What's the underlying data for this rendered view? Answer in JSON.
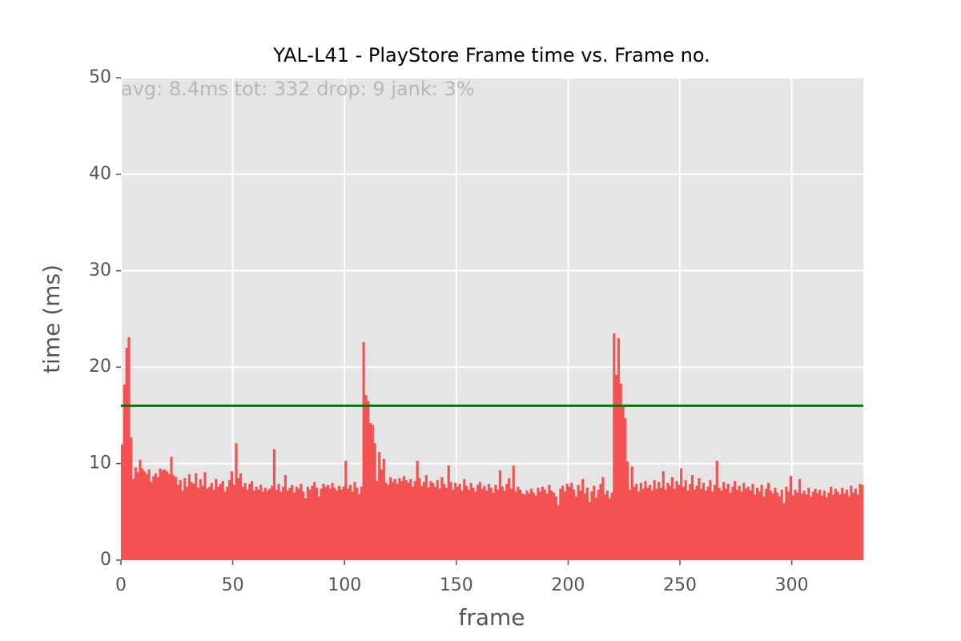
{
  "chart_data": {
    "type": "bar",
    "title": "YAL-L41 - PlayStore Frame time vs. Frame no.",
    "annotation": "avg: 8.4ms tot: 332 drop: 9 jank: 3%",
    "xlabel": "frame",
    "ylabel": "time (ms)",
    "color": "#f45252",
    "background": "#e5e5e5",
    "grid": true,
    "reference_line": {
      "value": 16,
      "color": "#007a00"
    },
    "xlim": [
      0,
      332
    ],
    "ylim": [
      0,
      50
    ],
    "xticks": [
      0,
      50,
      100,
      150,
      200,
      250,
      300
    ],
    "yticks": [
      0,
      10,
      20,
      30,
      40,
      50
    ],
    "x": [
      0,
      1,
      2,
      3,
      4,
      5,
      6,
      7,
      8,
      9,
      10,
      11,
      12,
      13,
      14,
      15,
      16,
      17,
      18,
      19,
      20,
      21,
      22,
      23,
      24,
      25,
      26,
      27,
      28,
      29,
      30,
      31,
      32,
      33,
      34,
      35,
      36,
      37,
      38,
      39,
      40,
      41,
      42,
      43,
      44,
      45,
      46,
      47,
      48,
      49,
      50,
      51,
      52,
      53,
      54,
      55,
      56,
      57,
      58,
      59,
      60,
      61,
      62,
      63,
      64,
      65,
      66,
      67,
      68,
      69,
      70,
      71,
      72,
      73,
      74,
      75,
      76,
      77,
      78,
      79,
      80,
      81,
      82,
      83,
      84,
      85,
      86,
      87,
      88,
      89,
      90,
      91,
      92,
      93,
      94,
      95,
      96,
      97,
      98,
      99,
      100,
      101,
      102,
      103,
      104,
      105,
      106,
      107,
      108,
      109,
      110,
      111,
      112,
      113,
      114,
      115,
      116,
      117,
      118,
      119,
      120,
      121,
      122,
      123,
      124,
      125,
      126,
      127,
      128,
      129,
      130,
      131,
      132,
      133,
      134,
      135,
      136,
      137,
      138,
      139,
      140,
      141,
      142,
      143,
      144,
      145,
      146,
      147,
      148,
      149,
      150,
      151,
      152,
      153,
      154,
      155,
      156,
      157,
      158,
      159,
      160,
      161,
      162,
      163,
      164,
      165,
      166,
      167,
      168,
      169,
      170,
      171,
      172,
      173,
      174,
      175,
      176,
      177,
      178,
      179,
      180,
      181,
      182,
      183,
      184,
      185,
      186,
      187,
      188,
      189,
      190,
      191,
      192,
      193,
      194,
      195,
      196,
      197,
      198,
      199,
      200,
      201,
      202,
      203,
      204,
      205,
      206,
      207,
      208,
      209,
      210,
      211,
      212,
      213,
      214,
      215,
      216,
      217,
      218,
      219,
      220,
      221,
      222,
      223,
      224,
      225,
      226,
      227,
      228,
      229,
      230,
      231,
      232,
      233,
      234,
      235,
      236,
      237,
      238,
      239,
      240,
      241,
      242,
      243,
      244,
      245,
      246,
      247,
      248,
      249,
      250,
      251,
      252,
      253,
      254,
      255,
      256,
      257,
      258,
      259,
      260,
      261,
      262,
      263,
      264,
      265,
      266,
      267,
      268,
      269,
      270,
      271,
      272,
      273,
      274,
      275,
      276,
      277,
      278,
      279,
      280,
      281,
      282,
      283,
      284,
      285,
      286,
      287,
      288,
      289,
      290,
      291,
      292,
      293,
      294,
      295,
      296,
      297,
      298,
      299,
      300,
      301,
      302,
      303,
      304,
      305,
      306,
      307,
      308,
      309,
      310,
      311,
      312,
      313,
      314,
      315,
      316,
      317,
      318,
      319,
      320,
      321,
      322,
      323,
      324,
      325,
      326,
      327,
      328,
      329,
      330,
      331
    ],
    "values": [
      12,
      18.2,
      22,
      23.1,
      12.7,
      8.4,
      9.6,
      9.1,
      10.4,
      9.5,
      9.2,
      8.9,
      9.4,
      8.1,
      8.7,
      9.0,
      8.6,
      9.5,
      9.3,
      9.4,
      9.2,
      8.9,
      10.7,
      8.8,
      8.6,
      7.8,
      8.3,
      7.2,
      8.5,
      7.6,
      8.9,
      8.1,
      7.9,
      9.0,
      7.5,
      8.4,
      7.7,
      9.1,
      7.4,
      7.6,
      8.0,
      7.3,
      8.4,
      7.6,
      7.9,
      8.2,
      7.1,
      7.6,
      8.3,
      9.2,
      7.8,
      12.1,
      8.5,
      9.0,
      7.6,
      8.0,
      7.3,
      7.9,
      8.2,
      7.2,
      7.6,
      7.3,
      7.8,
      7.1,
      7.5,
      7.2,
      7.4,
      7.7,
      11.5,
      7.3,
      7.9,
      7.1,
      7.6,
      8.8,
      7.2,
      7.5,
      7.8,
      7.0,
      7.6,
      7.4,
      7.9,
      7.1,
      6.4,
      7.6,
      7.3,
      7.7,
      8.1,
      7.5,
      6.6,
      7.4,
      7.9,
      7.6,
      7.8,
      7.4,
      8.0,
      7.5,
      7.2,
      7.7,
      7.3,
      7.6,
      10.3,
      7.4,
      7.8,
      7.1,
      8.1,
      7.5,
      6.8,
      7.6,
      22.6,
      17.1,
      16.5,
      14.2,
      14.0,
      12.1,
      8.2,
      11.2,
      9.4,
      10.5,
      8.0,
      7.8,
      8.6,
      8.1,
      8.4,
      7.9,
      8.5,
      8.2,
      8.7,
      8.3,
      8.0,
      8.4,
      7.6,
      8.2,
      10.3,
      8.5,
      7.7,
      8.1,
      8.8,
      7.5,
      8.2,
      8.0,
      7.6,
      8.3,
      7.4,
      8.6,
      7.9,
      7.5,
      9.8,
      8.1,
      7.3,
      8.0,
      7.6,
      7.9,
      7.2,
      8.4,
      7.7,
      7.3,
      8.0,
      7.5,
      7.1,
      7.8,
      8.1,
      7.4,
      7.7,
      7.2,
      7.9,
      7.5,
      7.0,
      7.8,
      7.3,
      9.3,
      7.6,
      7.2,
      7.9,
      8.5,
      7.4,
      9.8,
      7.1,
      7.6,
      7.3,
      6.9,
      6.8,
      7.2,
      6.9,
      7.4,
      7.0,
      6.7,
      7.5,
      7.1,
      7.6,
      7.3,
      6.9,
      7.8,
      7.2,
      7.0,
      6.6,
      5.7,
      7.4,
      7.7,
      7.1,
      7.9,
      7.6,
      8.0,
      7.3,
      6.6,
      7.8,
      7.2,
      8.4,
      6.9,
      7.5,
      6.0,
      7.1,
      7.7,
      6.5,
      7.3,
      7.9,
      8.6,
      6.8,
      7.2,
      6.4,
      7.0,
      23.5,
      19.2,
      23.0,
      18.3,
      16.1,
      14.7,
      10.2,
      7.3,
      9.7,
      7.6,
      7.9,
      7.1,
      8.0,
      7.4,
      8.2,
      7.5,
      7.8,
      7.2,
      8.3,
      7.4,
      8.1,
      7.5,
      9.2,
      7.3,
      8.0,
      7.7,
      8.6,
      7.4,
      8.2,
      7.8,
      9.5,
      7.6,
      8.3,
      7.2,
      7.9,
      8.8,
      7.3,
      7.7,
      8.5,
      7.4,
      8.0,
      7.2,
      7.6,
      8.3,
      7.1,
      7.8,
      10.3,
      7.5,
      7.2,
      8.1,
      7.4,
      7.9,
      7.0,
      7.6,
      8.2,
      7.3,
      7.7,
      7.1,
      8.0,
      7.4,
      7.6,
      7.2,
      7.9,
      6.8,
      7.5,
      7.1,
      7.8,
      6.6,
      7.4,
      8.0,
      7.2,
      6.9,
      7.5,
      7.0,
      6.6,
      7.3,
      5.9,
      7.6,
      7.1,
      8.7,
      6.7,
      7.3,
      7.0,
      8.4,
      6.9,
      7.2,
      6.8,
      7.5,
      6.6,
      7.1,
      7.4,
      6.9,
      7.3,
      6.7,
      7.2,
      6.5,
      7.0,
      7.6,
      6.8,
      7.4,
      7.1,
      6.8,
      7.5,
      6.9,
      7.3,
      6.6,
      7.7,
      7.0,
      7.4,
      6.8,
      7.9,
      7.8
    ]
  }
}
